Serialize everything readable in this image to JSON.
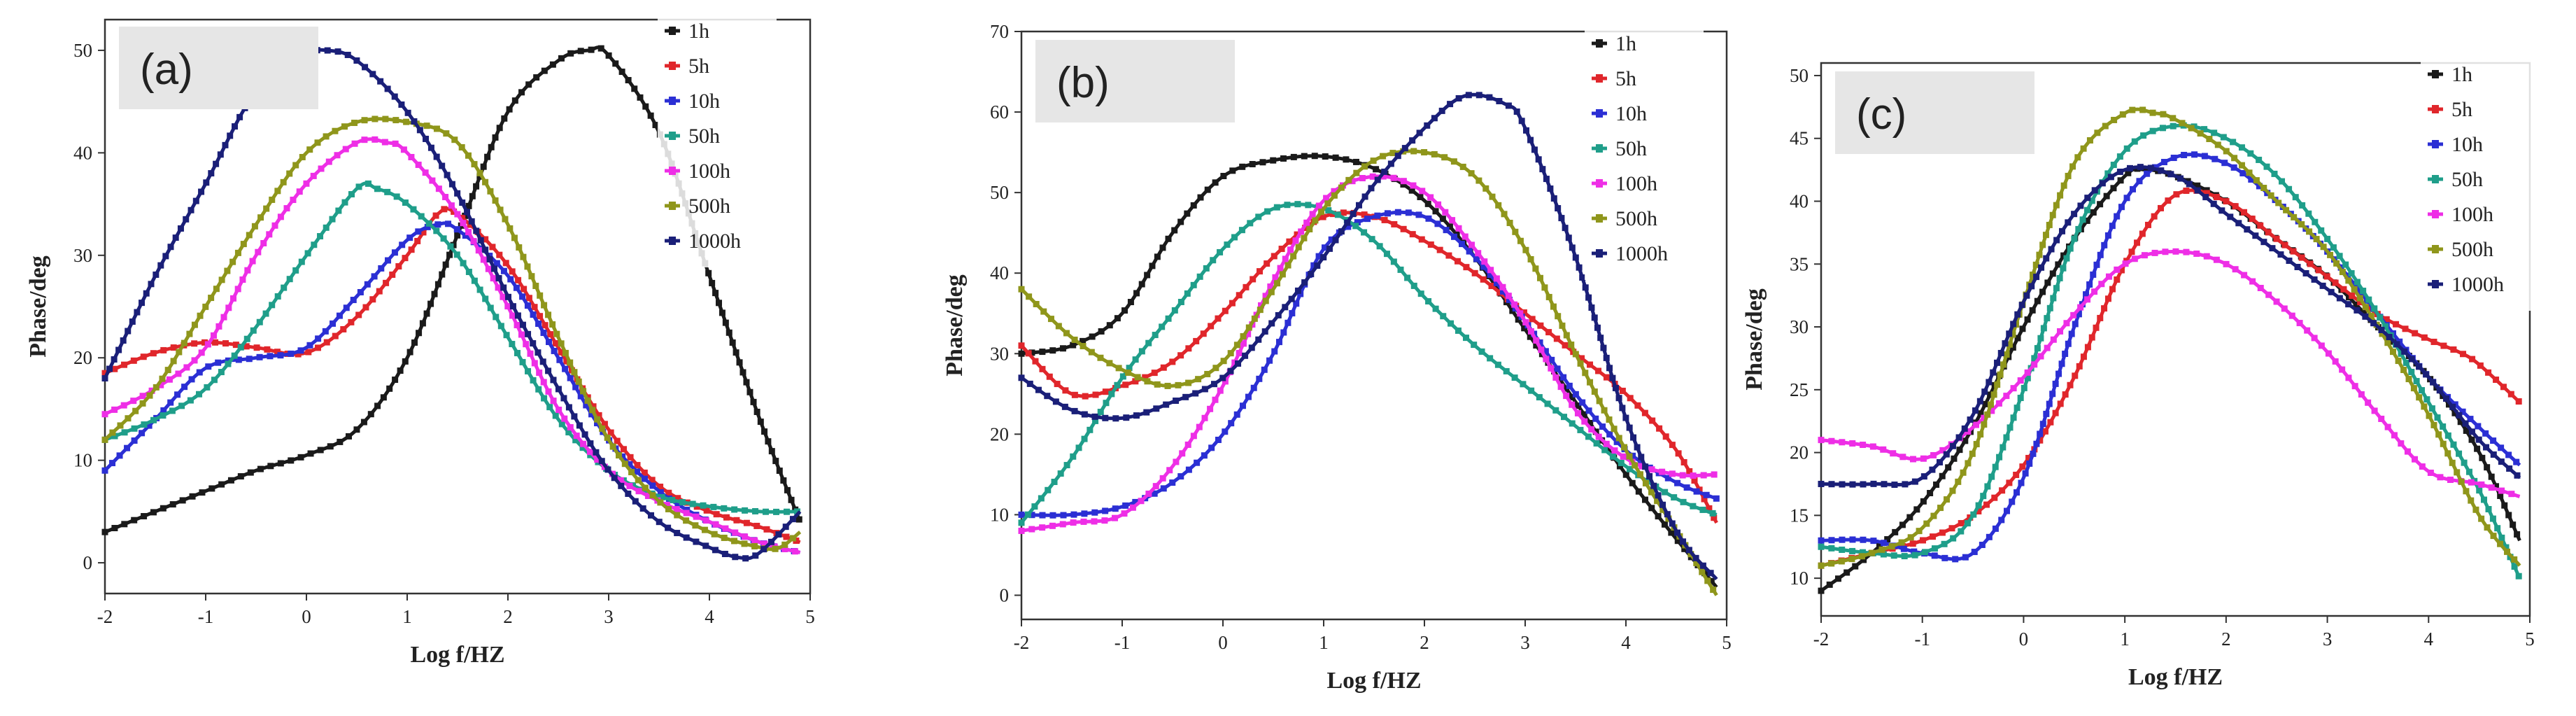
{
  "colors": {
    "1h": "#1a1a1a",
    "5h": "#e0262b",
    "10h": "#2b2fd4",
    "50h": "#1f9e8a",
    "100h": "#ee2ee6",
    "500h": "#8f961b",
    "1000h": "#1a1f78"
  },
  "chart_data": [
    {
      "type": "line",
      "panel_label": "(a)",
      "xlabel": "Log f/HZ",
      "ylabel": "Phase/deg",
      "xlim": [
        -2,
        5
      ],
      "ylim": [
        -3,
        53
      ],
      "xticks": [
        -2,
        -1,
        0,
        1,
        2,
        3,
        4,
        5
      ],
      "yticks": [
        0,
        10,
        20,
        30,
        40,
        50
      ],
      "legend": [
        "1h",
        "5h",
        "10h",
        "50h",
        "100h",
        "500h",
        "1000h"
      ],
      "series": [
        {
          "name": "1h",
          "x": [
            -2,
            -1.5,
            -1,
            -0.5,
            0,
            0.5,
            1,
            1.5,
            2,
            2.5,
            2.8,
            3,
            3.5,
            4,
            4.5,
            4.9
          ],
          "y": [
            3,
            5,
            7,
            9,
            10.5,
            13,
            20,
            32,
            44,
            49,
            50,
            49.5,
            42,
            28,
            14,
            4
          ]
        },
        {
          "name": "5h",
          "x": [
            -2,
            -1.5,
            -1,
            -0.5,
            0,
            0.5,
            1,
            1.3,
            1.5,
            2,
            2.5,
            3,
            3.5,
            4,
            4.5,
            4.9
          ],
          "y": [
            18.5,
            20.5,
            21.5,
            21,
            20.5,
            24,
            30,
            34,
            34,
            29,
            21,
            13,
            7.5,
            5,
            3.5,
            2
          ]
        },
        {
          "name": "10h",
          "x": [
            -2,
            -1.5,
            -1,
            -0.5,
            0,
            0.5,
            1,
            1.3,
            1.5,
            2,
            2.5,
            3,
            3.5,
            4,
            4.5,
            4.9
          ],
          "y": [
            9,
            14,
            19,
            20,
            21,
            26,
            31.5,
            33,
            32.5,
            28,
            20,
            12,
            7,
            4,
            2,
            1
          ]
        },
        {
          "name": "50h",
          "x": [
            -2,
            -1.5,
            -1,
            -0.5,
            0,
            0.5,
            0.7,
            1,
            1.5,
            2,
            2.5,
            3,
            3.5,
            4,
            4.5,
            4.9
          ],
          "y": [
            12,
            14,
            17,
            23,
            30,
            36.5,
            36.5,
            35,
            30,
            22,
            14,
            9,
            6.5,
            5.5,
            5,
            5
          ]
        },
        {
          "name": "100h",
          "x": [
            -2,
            -1.5,
            -1,
            -0.5,
            0,
            0.5,
            0.8,
            1,
            1.5,
            2,
            2.5,
            3,
            3.5,
            4,
            4.5,
            4.9
          ],
          "y": [
            14.5,
            17,
            21,
            30,
            37,
            41,
            41,
            40,
            34,
            25,
            15,
            9,
            6,
            4,
            2,
            1
          ]
        },
        {
          "name": "500h",
          "x": [
            -2,
            -1.5,
            -1,
            -0.5,
            0,
            0.5,
            1,
            1.5,
            2,
            2.5,
            3,
            3.5,
            4,
            4.5,
            4.7,
            4.9
          ],
          "y": [
            12,
            17,
            25,
            33,
            40,
            43,
            43,
            41,
            33,
            22,
            12,
            6,
            3,
            1.5,
            1.5,
            3
          ]
        },
        {
          "name": "1000h",
          "x": [
            -2,
            -1.5,
            -1,
            -0.5,
            0,
            0.2,
            0.5,
            1,
            1.5,
            2,
            2.5,
            3,
            3.5,
            4,
            4.3,
            4.5,
            4.9
          ],
          "y": [
            18,
            28,
            37,
            46,
            49.5,
            50,
            49,
            44,
            36,
            26,
            17,
            9,
            4,
            1.5,
            0.5,
            1,
            5
          ]
        }
      ]
    },
    {
      "type": "line",
      "panel_label": "(b)",
      "xlabel": "Log f/HZ",
      "ylabel": "Phase/deg",
      "xlim": [
        -2,
        5
      ],
      "ylim": [
        -3,
        70
      ],
      "xticks": [
        -2,
        -1,
        0,
        1,
        2,
        3,
        4,
        5
      ],
      "yticks": [
        0,
        10,
        20,
        30,
        40,
        50,
        60,
        70
      ],
      "legend": [
        "1h",
        "5h",
        "10h",
        "50h",
        "100h",
        "500h",
        "1000h"
      ],
      "series": [
        {
          "name": "1h",
          "x": [
            -2,
            -1.5,
            -1,
            -0.5,
            0,
            0.5,
            1,
            1.5,
            2,
            2.5,
            3,
            3.5,
            4,
            4.5,
            4.9
          ],
          "y": [
            30,
            31,
            35,
            45,
            52,
            54,
            54.5,
            53,
            49,
            42,
            33,
            24,
            15,
            7,
            1
          ]
        },
        {
          "name": "5h",
          "x": [
            -2,
            -1.5,
            -1,
            -0.5,
            0,
            0.5,
            1,
            1.5,
            2,
            2.5,
            3,
            3.5,
            4,
            4.5,
            4.9
          ],
          "y": [
            31,
            25,
            26,
            29,
            35,
            42,
            47,
            47,
            44,
            40,
            35,
            30,
            25,
            18,
            9
          ]
        },
        {
          "name": "10h",
          "x": [
            -2,
            -1.5,
            -1,
            -0.5,
            0,
            0.5,
            1,
            1.5,
            2,
            2.5,
            3,
            3.5,
            4,
            4.5,
            4.9
          ],
          "y": [
            10,
            10,
            11,
            14,
            20,
            30,
            43,
            47,
            47,
            42,
            34,
            25,
            18,
            14,
            12
          ]
        },
        {
          "name": "50h",
          "x": [
            -2,
            -1.5,
            -1,
            -0.5,
            0,
            0.5,
            1,
            1.5,
            2,
            2.5,
            3,
            3.5,
            4,
            4.5,
            4.9
          ],
          "y": [
            9,
            17,
            27,
            35,
            43,
            48,
            48,
            44,
            37,
            31,
            26,
            21,
            16,
            12,
            10
          ]
        },
        {
          "name": "100h",
          "x": [
            -2,
            -1.5,
            -1,
            -0.5,
            0,
            0.5,
            1,
            1.5,
            2,
            2.5,
            3,
            3.5,
            4,
            4.5,
            4.9
          ],
          "y": [
            8,
            9,
            10,
            16,
            26,
            39,
            49,
            52,
            50,
            43,
            34,
            23,
            17,
            15,
            15
          ]
        },
        {
          "name": "500h",
          "x": [
            -2,
            -1.5,
            -1,
            -0.5,
            0,
            0.5,
            1,
            1.5,
            2,
            2.5,
            3,
            3.5,
            4,
            4.5,
            4.9
          ],
          "y": [
            38,
            32,
            28,
            26,
            29,
            38,
            48,
            54,
            55,
            52,
            43,
            30,
            18,
            8,
            0
          ]
        },
        {
          "name": "1000h",
          "x": [
            -2,
            -1.5,
            -1,
            -0.5,
            0,
            0.5,
            1,
            1.5,
            2,
            2.4,
            2.8,
            3,
            3.5,
            4,
            4.5,
            4.9
          ],
          "y": [
            27,
            23,
            22,
            24,
            27,
            34,
            42,
            51,
            58,
            62,
            61,
            58,
            42,
            22,
            8,
            2
          ]
        }
      ]
    },
    {
      "type": "line",
      "panel_label": "(c)",
      "xlabel": "Log f/HZ",
      "ylabel": "Phase/deg",
      "xlim": [
        -2,
        5
      ],
      "ylim": [
        7,
        51
      ],
      "xticks": [
        -2,
        -1,
        0,
        1,
        2,
        3,
        4,
        5
      ],
      "yticks": [
        10,
        15,
        20,
        25,
        30,
        35,
        40,
        45,
        50
      ],
      "legend": [
        "1h",
        "5h",
        "10h",
        "50h",
        "100h",
        "500h",
        "1000h"
      ],
      "series": [
        {
          "name": "1h",
          "x": [
            -2,
            -1.5,
            -1,
            -0.5,
            0,
            0.5,
            1,
            1.2,
            1.5,
            2,
            2.5,
            3,
            3.5,
            4,
            4.5,
            4.9
          ],
          "y": [
            9,
            12,
            16,
            22,
            30,
            37,
            42,
            42.5,
            42,
            40,
            37,
            34,
            30,
            26,
            20,
            13
          ]
        },
        {
          "name": "5h",
          "x": [
            -2,
            -1.5,
            -1,
            -0.5,
            0,
            0.5,
            1,
            1.5,
            2,
            2.5,
            3,
            3.5,
            4,
            4.3,
            4.5,
            4.9
          ],
          "y": [
            11,
            12,
            13,
            15,
            19,
            26,
            35,
            40.5,
            40,
            37,
            34,
            31,
            29,
            28,
            27,
            24
          ]
        },
        {
          "name": "10h",
          "x": [
            -2,
            -1.5,
            -1,
            -0.5,
            0,
            0.5,
            1,
            1.5,
            2,
            2.5,
            3,
            3.5,
            4,
            4.5,
            4.9
          ],
          "y": [
            13,
            13,
            12,
            12,
            18,
            30,
            40,
            43.5,
            43,
            40,
            36,
            31,
            26,
            22,
            19
          ]
        },
        {
          "name": "50h",
          "x": [
            -2,
            -1.5,
            -1,
            -0.5,
            0,
            0.5,
            1,
            1.5,
            2,
            2.5,
            3,
            3.5,
            4,
            4.5,
            4.9
          ],
          "y": [
            12.5,
            12,
            12,
            15,
            25,
            37,
            44,
            46,
            45,
            42,
            37,
            31,
            24,
            17,
            10
          ]
        },
        {
          "name": "100h",
          "x": [
            -2,
            -1.5,
            -1,
            -0.5,
            0,
            0.5,
            1,
            1.5,
            2,
            2.5,
            3,
            3.5,
            4,
            4.5,
            4.9
          ],
          "y": [
            21,
            20.5,
            19.5,
            22,
            26,
            31,
            35,
            36,
            35,
            32,
            28,
            23,
            18.5,
            17.5,
            16.5
          ]
        },
        {
          "name": "500h",
          "x": [
            -2,
            -1.5,
            -1,
            -0.5,
            0,
            0.5,
            1,
            1.3,
            1.5,
            2,
            2.5,
            3,
            3.5,
            4,
            4.5,
            4.9
          ],
          "y": [
            11,
            12,
            14,
            20,
            32,
            43,
            47,
            47,
            46.5,
            44,
            40,
            36,
            30,
            23,
            15,
            11
          ]
        },
        {
          "name": "1000h",
          "x": [
            -2,
            -1.5,
            -1,
            -0.5,
            0,
            0.5,
            1,
            1.5,
            2,
            2.5,
            3,
            3.5,
            4,
            4.5,
            4.9
          ],
          "y": [
            17.5,
            17.5,
            18,
            23,
            32,
            39,
            42.5,
            42,
            39,
            36,
            33,
            30,
            26,
            21,
            18
          ]
        }
      ]
    }
  ]
}
